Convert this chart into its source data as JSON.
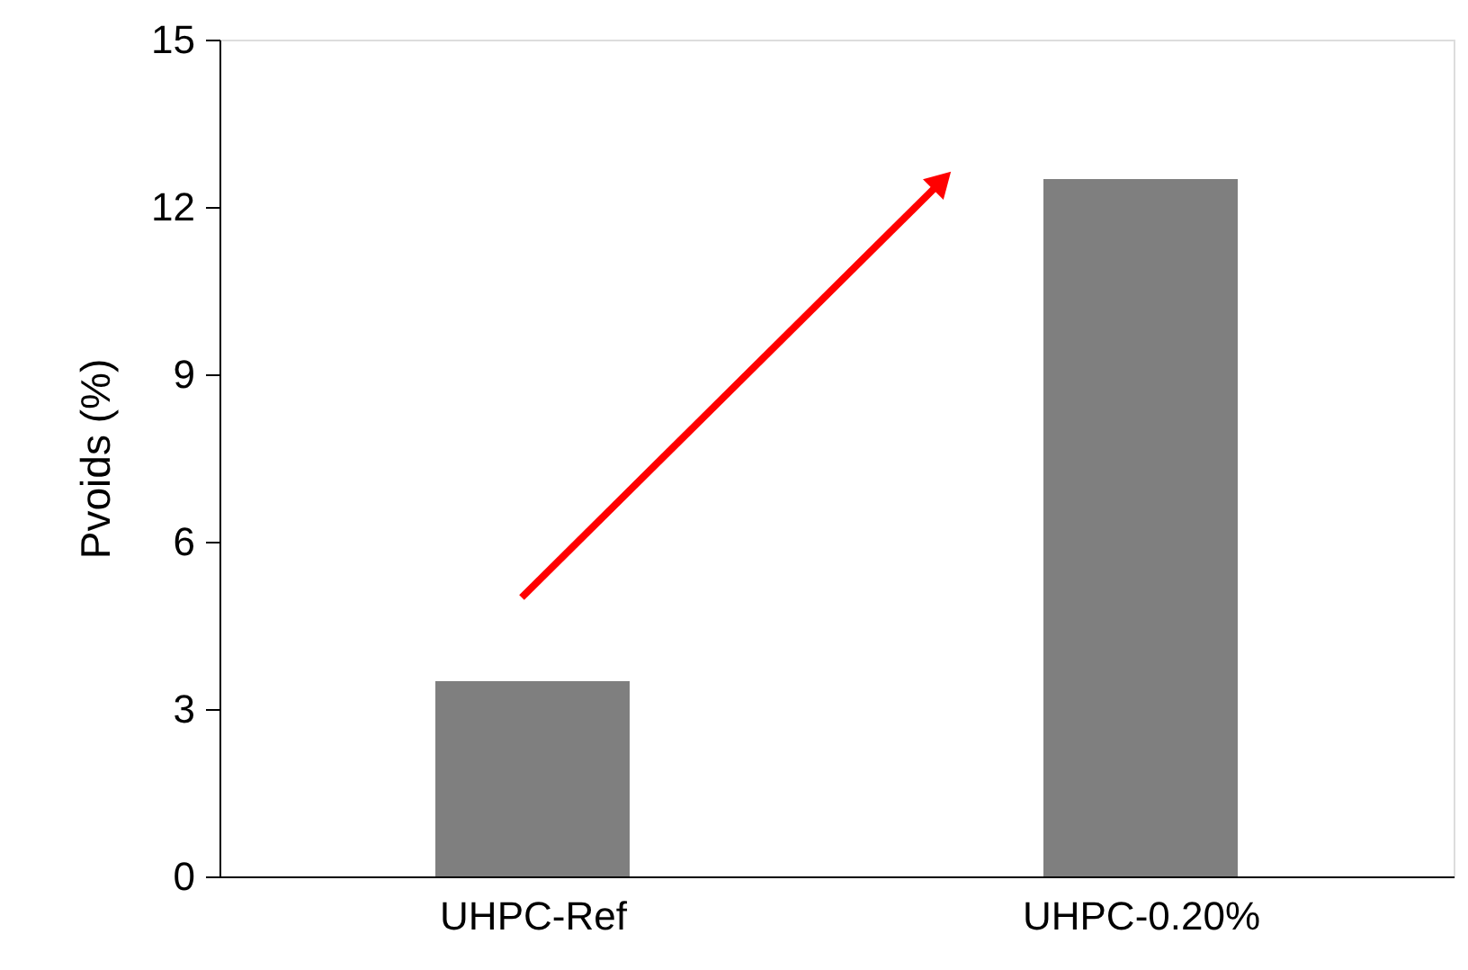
{
  "chart_data": {
    "type": "bar",
    "ylabel": "Pvoids (%)",
    "categories": [
      "UHPC-Ref",
      "UHPC-0.20%"
    ],
    "values": [
      3.5,
      12.5
    ],
    "color": "#7f7f7f",
    "ylim": [
      0,
      15
    ],
    "yticks": [
      0,
      3,
      6,
      9,
      12,
      15
    ],
    "grid": false
  }
}
